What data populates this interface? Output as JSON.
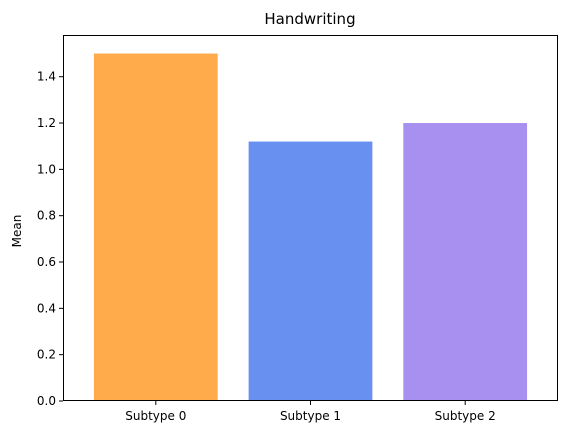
{
  "chart_data": {
    "type": "bar",
    "title": "Handwriting",
    "xlabel": "",
    "ylabel": "Mean",
    "categories": [
      "Subtype 0",
      "Subtype 1",
      "Subtype 2"
    ],
    "values": [
      1.5,
      1.12,
      1.2
    ],
    "colors": [
      "#ffaa4b",
      "#6890f0",
      "#a890f0"
    ],
    "ylim": [
      0,
      1.58
    ],
    "yticks": [
      "0.0",
      "0.2",
      "0.4",
      "0.6",
      "0.8",
      "1.0",
      "1.2",
      "1.4"
    ],
    "ytick_values": [
      0.0,
      0.2,
      0.4,
      0.6,
      0.8,
      1.0,
      1.2,
      1.4
    ],
    "grid": false,
    "legend": "none"
  }
}
